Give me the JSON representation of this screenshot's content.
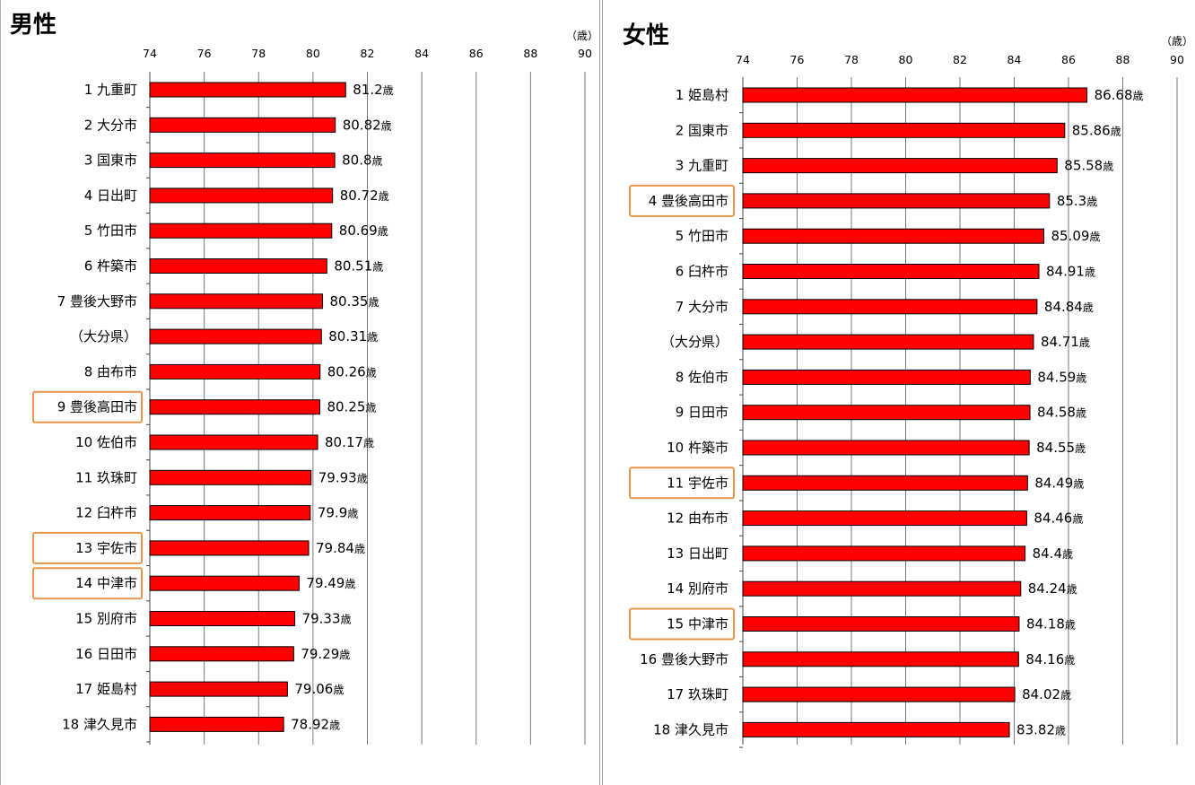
{
  "chart_data": [
    {
      "type": "bar",
      "orientation": "horizontal",
      "title": "男性",
      "unit": "（歳）",
      "value_suffix": "歳",
      "xlim": [
        74,
        90
      ],
      "ticks": [
        74,
        76,
        78,
        80,
        82,
        84,
        86,
        88,
        90
      ],
      "bar_color": "#ff0000",
      "highlight_color": "#e8974a",
      "categories": [
        {
          "label": "1 九重町",
          "value": 81.2,
          "highlight": false
        },
        {
          "label": "2 大分市",
          "value": 80.82,
          "highlight": false
        },
        {
          "label": "3 国東市",
          "value": 80.8,
          "highlight": false
        },
        {
          "label": "4 日出町",
          "value": 80.72,
          "highlight": false
        },
        {
          "label": "5 竹田市",
          "value": 80.69,
          "highlight": false
        },
        {
          "label": "6 杵築市",
          "value": 80.51,
          "highlight": false
        },
        {
          "label": "7 豊後大野市",
          "value": 80.35,
          "highlight": false
        },
        {
          "label": "（大分県）",
          "value": 80.31,
          "highlight": false
        },
        {
          "label": "8 由布市",
          "value": 80.26,
          "highlight": false
        },
        {
          "label": "9 豊後高田市",
          "value": 80.25,
          "highlight": true
        },
        {
          "label": "10 佐伯市",
          "value": 80.17,
          "highlight": false
        },
        {
          "label": "11 玖珠町",
          "value": 79.93,
          "highlight": false
        },
        {
          "label": "12 臼杵市",
          "value": 79.9,
          "highlight": false
        },
        {
          "label": "13 宇佐市",
          "value": 79.84,
          "highlight": true
        },
        {
          "label": "14 中津市",
          "value": 79.49,
          "highlight": true
        },
        {
          "label": "15 別府市",
          "value": 79.33,
          "highlight": false
        },
        {
          "label": "16 日田市",
          "value": 79.29,
          "highlight": false
        },
        {
          "label": "17 姫島村",
          "value": 79.06,
          "highlight": false
        },
        {
          "label": "18 津久見市",
          "value": 78.92,
          "highlight": false
        }
      ]
    },
    {
      "type": "bar",
      "orientation": "horizontal",
      "title": "女性",
      "unit": "（歳）",
      "value_suffix": "歳",
      "xlim": [
        74,
        90
      ],
      "ticks": [
        74,
        76,
        78,
        80,
        82,
        84,
        86,
        88,
        90
      ],
      "bar_color": "#ff0000",
      "highlight_color": "#e8974a",
      "categories": [
        {
          "label": "1 姫島村",
          "value": 86.68,
          "highlight": false
        },
        {
          "label": "2 国東市",
          "value": 85.86,
          "highlight": false
        },
        {
          "label": "3 九重町",
          "value": 85.58,
          "highlight": false
        },
        {
          "label": "4 豊後高田市",
          "value": 85.3,
          "highlight": true
        },
        {
          "label": "5 竹田市",
          "value": 85.09,
          "highlight": false
        },
        {
          "label": "6 臼杵市",
          "value": 84.91,
          "highlight": false
        },
        {
          "label": "7 大分市",
          "value": 84.84,
          "highlight": false
        },
        {
          "label": "（大分県）",
          "value": 84.71,
          "highlight": false
        },
        {
          "label": "8 佐伯市",
          "value": 84.59,
          "highlight": false
        },
        {
          "label": "9 日田市",
          "value": 84.58,
          "highlight": false
        },
        {
          "label": "10 杵築市",
          "value": 84.55,
          "highlight": false
        },
        {
          "label": "11 宇佐市",
          "value": 84.49,
          "highlight": true
        },
        {
          "label": "12 由布市",
          "value": 84.46,
          "highlight": false
        },
        {
          "label": "13 日出町",
          "value": 84.4,
          "highlight": false
        },
        {
          "label": "14 別府市",
          "value": 84.24,
          "highlight": false
        },
        {
          "label": "15 中津市",
          "value": 84.18,
          "highlight": true
        },
        {
          "label": "16 豊後大野市",
          "value": 84.16,
          "highlight": false
        },
        {
          "label": "17 玖珠町",
          "value": 84.02,
          "highlight": false
        },
        {
          "label": "18 津久見市",
          "value": 83.82,
          "highlight": false
        }
      ]
    }
  ]
}
